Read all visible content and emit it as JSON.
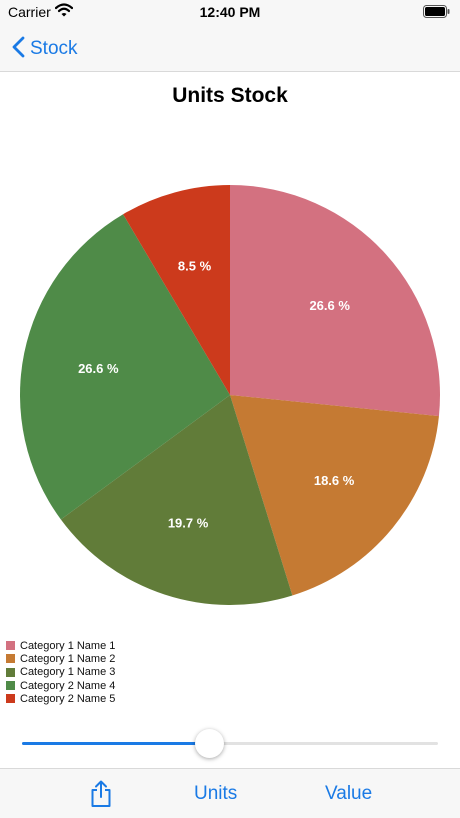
{
  "status_bar": {
    "carrier": "Carrier",
    "time": "12:40 PM"
  },
  "nav": {
    "back_label": "Stock",
    "back_icon": "chevron-left-icon"
  },
  "colors": {
    "accent": "#1a7ae5"
  },
  "chart_data": {
    "type": "pie",
    "title": "Units Stock",
    "slices": [
      {
        "name": "Category 1 Name 1",
        "value": 26.6,
        "label": "26.6 %",
        "color": "#d37180"
      },
      {
        "name": "Category 1 Name 2",
        "value": 18.6,
        "label": "18.6 %",
        "color": "#c57a33"
      },
      {
        "name": "Category 1 Name 3",
        "value": 19.7,
        "label": "19.7 %",
        "color": "#617c39"
      },
      {
        "name": "Category 2 Name 4",
        "value": 26.6,
        "label": "26.6 %",
        "color": "#4f8b48"
      },
      {
        "name": "Category 2 Name 5",
        "value": 8.5,
        "label": "8.5 %",
        "color": "#cc3a1c"
      }
    ],
    "legend_position": "bottom-left"
  },
  "slider": {
    "value": 0.45
  },
  "toolbar": {
    "share_icon": "share-icon",
    "units_label": "Units",
    "value_label": "Value"
  }
}
